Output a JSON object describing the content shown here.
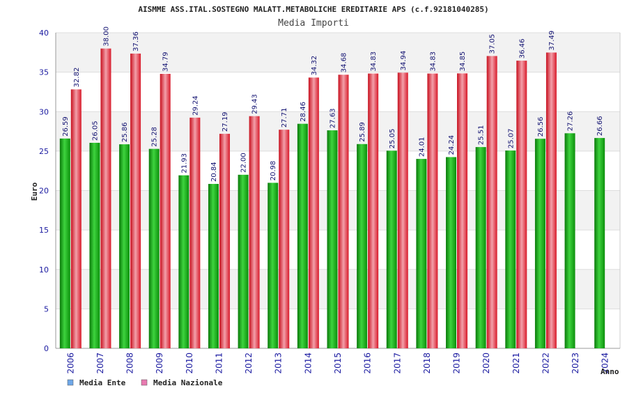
{
  "chart_data": {
    "type": "bar",
    "title": "AISMME ASS.ITAL.SOSTEGNO MALATT.METABOLICHE EREDITARIE APS (c.f.92181040285)",
    "subtitle": "Media Importi",
    "xlabel": "Anno",
    "ylabel": "Euro",
    "ylim": [
      0,
      40
    ],
    "yticks": [
      0,
      5,
      10,
      15,
      20,
      25,
      30,
      35,
      40
    ],
    "grid": true,
    "legend_position": "bottom-left",
    "categories": [
      "2006",
      "2007",
      "2008",
      "2009",
      "2010",
      "2011",
      "2012",
      "2013",
      "2014",
      "2015",
      "2016",
      "2017",
      "2018",
      "2019",
      "2020",
      "2021",
      "2022",
      "2023",
      "2024"
    ],
    "series": [
      {
        "name": "Media Ente",
        "legend_color": "#6fa8e8",
        "bar_color": "#1faa1f",
        "values": [
          26.59,
          26.05,
          25.86,
          25.28,
          21.93,
          20.84,
          22.0,
          20.98,
          28.46,
          27.63,
          25.89,
          25.05,
          24.01,
          24.24,
          25.51,
          25.07,
          26.56,
          27.26,
          26.66
        ],
        "labels": [
          "26.59",
          "26.05",
          "25.86",
          "25.28",
          "21.93",
          "20.84",
          "22.00",
          "20.98",
          "28.46",
          "27.63",
          "25.89",
          "25.05",
          "24.01",
          "24.24",
          "25.51",
          "25.07",
          "26.56",
          "27.26",
          "26.66"
        ]
      },
      {
        "name": "Media Nazionale",
        "legend_color": "#e87ab0",
        "bar_color": "#e8283a",
        "values": [
          32.82,
          38.0,
          37.36,
          34.79,
          29.24,
          27.19,
          29.43,
          27.71,
          34.32,
          34.68,
          34.83,
          34.94,
          34.83,
          34.85,
          37.05,
          36.46,
          37.49,
          null,
          null
        ],
        "labels": [
          "32.82",
          "38.00",
          "37.36",
          "34.79",
          "29.24",
          "27.19",
          "29.43",
          "27.71",
          "34.32",
          "34.68",
          "34.83",
          "34.94",
          "34.83",
          "34.85",
          "37.05",
          "36.46",
          "37.49",
          "",
          ""
        ]
      }
    ]
  }
}
